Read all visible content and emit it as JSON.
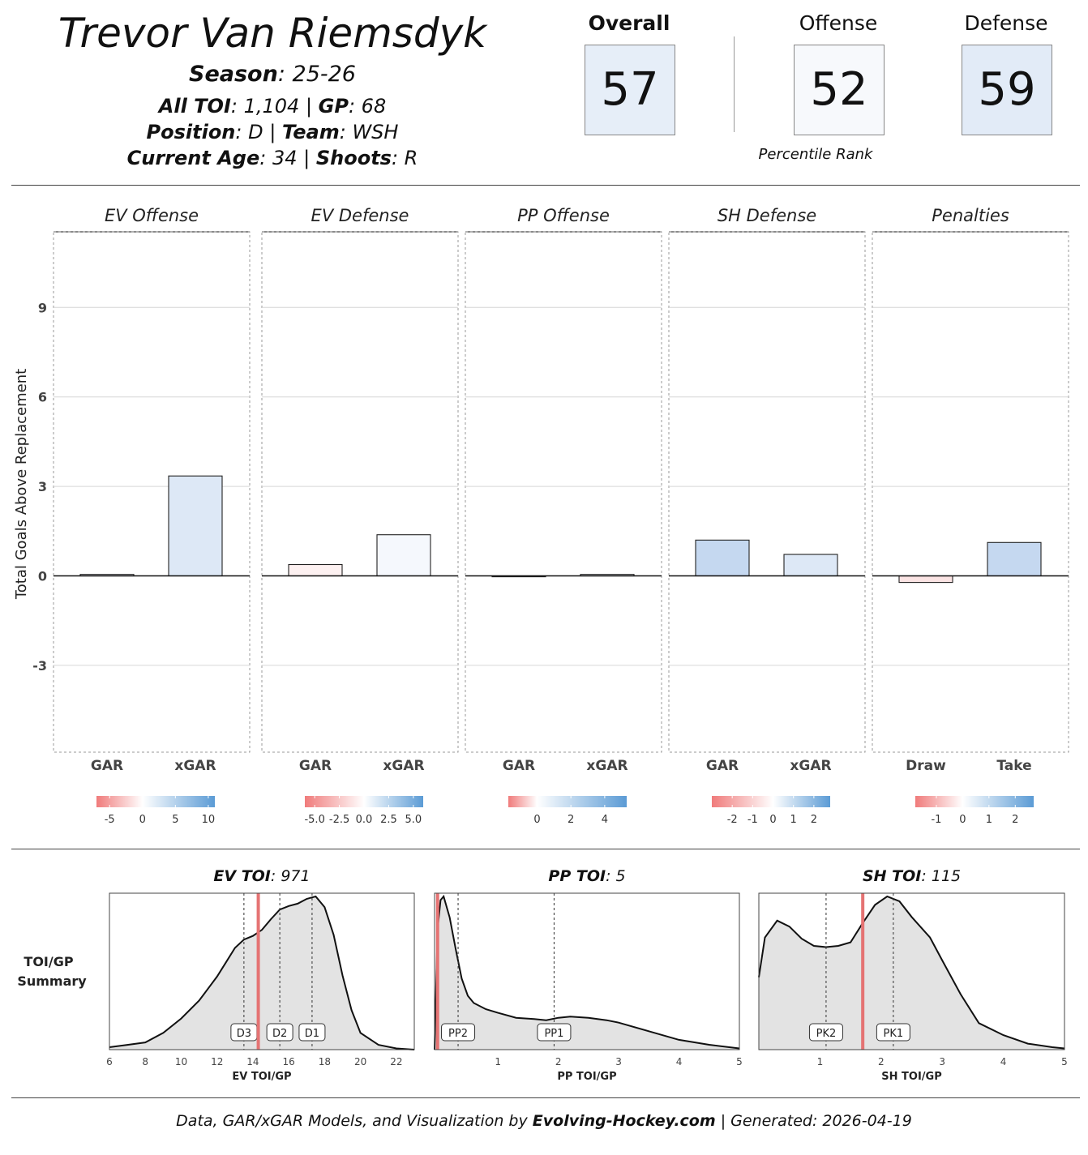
{
  "header": {
    "player_name": "Trevor Van Riemsdyk",
    "season_label": "Season",
    "season": "25-26",
    "toi_label": "All TOI",
    "toi": "1,104",
    "gp_label": "GP",
    "gp": "68",
    "position_label": "Position",
    "position": "D",
    "team_label": "Team",
    "team": "WSH",
    "age_label": "Current Age",
    "age": "34",
    "shoots_label": "Shoots",
    "shoots": "R"
  },
  "ranks": {
    "overall_label": "Overall",
    "overall": "57",
    "offense_label": "Offense",
    "offense": "52",
    "defense_label": "Defense",
    "defense": "59",
    "note": "Percentile Rank"
  },
  "colors": {
    "negative": "#f07b7b",
    "neutral": "#ffffff",
    "positive": "#5b9bd5",
    "team_line": "#e57373"
  },
  "chart_data": [
    {
      "type": "bar",
      "ylabel": "Total Goals Above Replacement",
      "yticks": [
        9,
        6,
        3,
        0,
        -3
      ],
      "ylim": [
        -5.8,
        11.4
      ],
      "panels": [
        {
          "title": "EV Offense",
          "categories": [
            "GAR",
            "xGAR"
          ],
          "values": [
            0.05,
            3.35
          ],
          "fills": [
            "#f4f7fc",
            "#dde8f6"
          ],
          "legend_ticks": [
            "-5",
            "0",
            "5",
            "10"
          ],
          "legend_range": [
            -7,
            11
          ]
        },
        {
          "title": "EV Defense",
          "categories": [
            "GAR",
            "xGAR"
          ],
          "values": [
            0.38,
            1.38
          ],
          "fills": [
            "#fdf1f1",
            "#f5f8fd"
          ],
          "legend_ticks": [
            "-5.0",
            "-2.5",
            "0.0",
            "2.5",
            "5.0"
          ],
          "legend_range": [
            -6,
            6
          ]
        },
        {
          "title": "PP Offense",
          "categories": [
            "GAR",
            "xGAR"
          ],
          "values": [
            -0.03,
            0.05
          ],
          "fills": [
            "#fdfdfd",
            "#f7f9fd"
          ],
          "legend_ticks": [
            "0",
            "2",
            "4"
          ],
          "legend_range": [
            -1.7,
            5.3
          ]
        },
        {
          "title": "SH Defense",
          "categories": [
            "GAR",
            "xGAR"
          ],
          "values": [
            1.2,
            0.72
          ],
          "fills": [
            "#c5d8f0",
            "#dde8f6"
          ],
          "legend_ticks": [
            "-2",
            "-1",
            "0",
            "1",
            "2"
          ],
          "legend_range": [
            -3,
            2.8
          ]
        },
        {
          "title": "Penalties",
          "categories": [
            "Draw",
            "Take"
          ],
          "values": [
            -0.22,
            1.12
          ],
          "fills": [
            "#fbe4e4",
            "#c5d8f0"
          ],
          "legend_ticks": [
            "-1",
            "0",
            "1",
            "2"
          ],
          "legend_range": [
            -1.8,
            2.7
          ]
        }
      ]
    },
    {
      "type": "area",
      "section_label": "TOI/GP Summary",
      "panels": [
        {
          "title_label": "EV TOI",
          "title_value": "971",
          "xlabel": "EV TOI/GP",
          "xlim": [
            6,
            23
          ],
          "xticks": [
            6,
            8,
            10,
            12,
            14,
            16,
            18,
            20,
            22
          ],
          "player_value": 14.3,
          "markers": [
            {
              "label": "D3",
              "x": 13.5
            },
            {
              "label": "D2",
              "x": 15.5
            },
            {
              "label": "D1",
              "x": 17.3
            }
          ],
          "x": [
            6,
            7,
            8,
            9,
            10,
            11,
            12,
            12.5,
            13,
            13.5,
            14,
            14.5,
            15,
            15.5,
            16,
            16.5,
            17,
            17.5,
            18,
            18.5,
            19,
            19.5,
            20,
            21,
            22,
            23
          ],
          "y": [
            0.02,
            0.04,
            0.06,
            0.14,
            0.26,
            0.41,
            0.61,
            0.73,
            0.85,
            0.92,
            0.95,
            1.0,
            1.09,
            1.17,
            1.2,
            1.22,
            1.26,
            1.28,
            1.19,
            0.96,
            0.62,
            0.33,
            0.14,
            0.04,
            0.01,
            0.0
          ]
        },
        {
          "title_label": "PP TOI",
          "title_value": "5",
          "xlabel": "PP TOI/GP",
          "xlim": [
            -0.05,
            5
          ],
          "xticks": [
            1,
            2,
            3,
            4,
            5
          ],
          "player_value": 0,
          "markers": [
            {
              "label": "PP2",
              "x": 0.34
            },
            {
              "label": "PP1",
              "x": 1.93
            }
          ],
          "x": [
            -0.05,
            0.0,
            0.05,
            0.1,
            0.2,
            0.3,
            0.4,
            0.5,
            0.6,
            0.8,
            1.0,
            1.3,
            1.6,
            1.8,
            2.0,
            2.2,
            2.5,
            2.8,
            3.0,
            3.5,
            4.0,
            4.5,
            5.0
          ],
          "y": [
            0.0,
            0.98,
            1.22,
            1.25,
            1.08,
            0.82,
            0.58,
            0.44,
            0.38,
            0.33,
            0.3,
            0.26,
            0.25,
            0.24,
            0.26,
            0.27,
            0.26,
            0.24,
            0.22,
            0.15,
            0.08,
            0.04,
            0.01
          ]
        },
        {
          "title_label": "SH TOI",
          "title_value": "115",
          "xlabel": "SH TOI/GP",
          "xlim": [
            0,
            5
          ],
          "xticks": [
            1,
            2,
            3,
            4,
            5
          ],
          "player_value": 1.7,
          "markers": [
            {
              "label": "PK2",
              "x": 1.1
            },
            {
              "label": "PK1",
              "x": 2.2
            }
          ],
          "x": [
            0,
            0.1,
            0.3,
            0.5,
            0.7,
            0.9,
            1.1,
            1.3,
            1.5,
            1.7,
            1.9,
            2.1,
            2.3,
            2.5,
            2.8,
            3.0,
            3.3,
            3.6,
            4.0,
            4.4,
            4.8,
            5.0
          ],
          "y": [
            0.6,
            0.93,
            1.07,
            1.02,
            0.92,
            0.86,
            0.85,
            0.86,
            0.89,
            1.05,
            1.2,
            1.27,
            1.23,
            1.1,
            0.93,
            0.74,
            0.46,
            0.22,
            0.12,
            0.05,
            0.02,
            0.01
          ]
        }
      ]
    }
  ],
  "footer": {
    "prefix": "Data, GAR/xGAR Models, and Visualization by ",
    "site": "Evolving-Hockey.com",
    "suffix": " | Generated: 2026-04-19"
  }
}
